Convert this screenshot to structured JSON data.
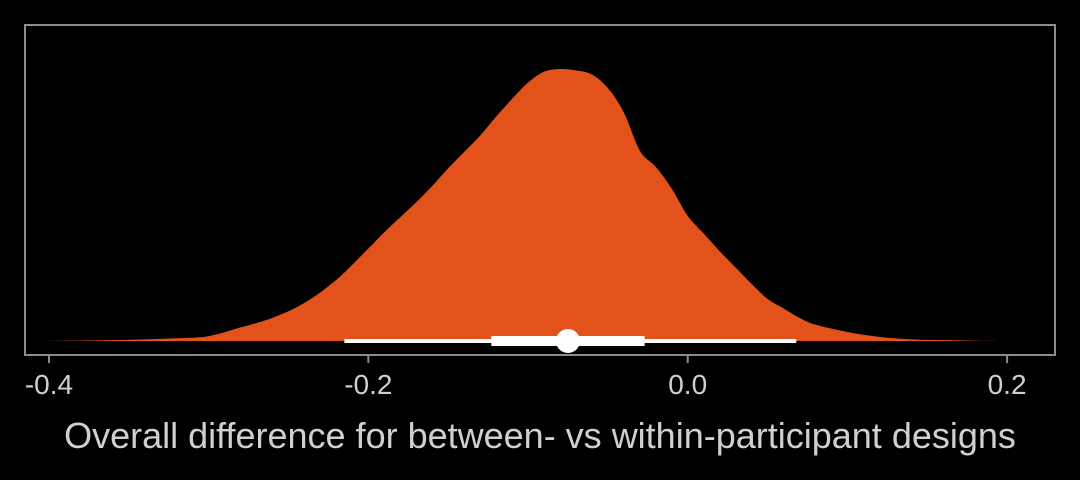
{
  "chart_data": {
    "type": "area",
    "title": "",
    "xlabel": "Overall difference for between- vs within-participant designs",
    "ylabel": "",
    "xlim": [
      -0.415,
      0.23
    ],
    "x_ticks": [
      -0.4,
      -0.2,
      0.0,
      0.2
    ],
    "x_tick_labels": [
      "-0.4",
      "-0.2",
      "0.0",
      "0.2"
    ],
    "grid": false,
    "legend": "none",
    "density": {
      "x": [
        -0.4,
        -0.36,
        -0.32,
        -0.3,
        -0.28,
        -0.26,
        -0.24,
        -0.22,
        -0.2,
        -0.19,
        -0.18,
        -0.17,
        -0.16,
        -0.15,
        -0.14,
        -0.13,
        -0.12,
        -0.11,
        -0.1,
        -0.09,
        -0.08,
        -0.07,
        -0.06,
        -0.05,
        -0.04,
        -0.03,
        -0.02,
        -0.01,
        0.0,
        0.01,
        0.02,
        0.03,
        0.04,
        0.05,
        0.06,
        0.07,
        0.08,
        0.1,
        0.12,
        0.14,
        0.16,
        0.18,
        0.2
      ],
      "y": [
        0.0,
        0.003,
        0.01,
        0.018,
        0.05,
        0.085,
        0.14,
        0.225,
        0.34,
        0.4,
        0.455,
        0.51,
        0.57,
        0.635,
        0.695,
        0.755,
        0.825,
        0.89,
        0.95,
        0.99,
        1.0,
        0.995,
        0.98,
        0.93,
        0.84,
        0.7,
        0.64,
        0.56,
        0.46,
        0.395,
        0.33,
        0.27,
        0.21,
        0.155,
        0.12,
        0.085,
        0.06,
        0.033,
        0.015,
        0.006,
        0.003,
        0.001,
        0.0
      ]
    },
    "point_interval": {
      "point": -0.075,
      "inner_interval": [
        -0.123,
        -0.027
      ],
      "outer_interval": [
        -0.215,
        0.068
      ]
    },
    "colors": {
      "background": "#000000",
      "density_fill": "#e4521c",
      "interval": "#ffffff",
      "panel_border": "#8c8c8c",
      "text": "#d0d0d0"
    }
  }
}
